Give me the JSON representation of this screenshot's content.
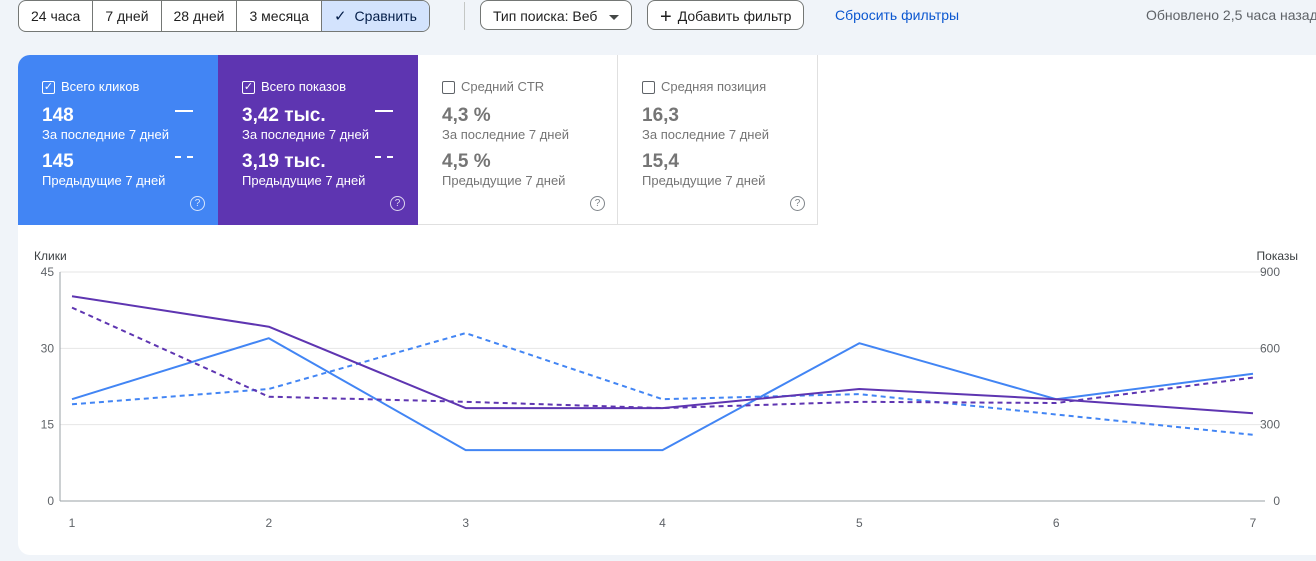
{
  "toolbar": {
    "date_ranges": [
      "24 часа",
      "7 дней",
      "28 дней",
      "3 месяца",
      "Сравнить"
    ],
    "active_range": "Сравнить",
    "search_type_label": "Тип поиска: Веб",
    "add_filter_label": "Добавить фильтр",
    "reset_filters_label": "Сбросить фильтры",
    "updated_text": "Обновлено 2,5 часа назад"
  },
  "metrics": [
    {
      "name": "Всего кликов",
      "checked": true,
      "current": "148",
      "current_label": "За последние 7 дней",
      "previous": "145",
      "previous_label": "Предыдущие 7 дней",
      "color": "#4285f4"
    },
    {
      "name": "Всего показов",
      "checked": true,
      "current": "3,42 тыс.",
      "current_label": "За последние 7 дней",
      "previous": "3,19 тыс.",
      "previous_label": "Предыдущие 7 дней",
      "color": "#5e35b1"
    },
    {
      "name": "Средний CTR",
      "checked": false,
      "current": "4,3 %",
      "current_label": "За последние 7 дней",
      "previous": "4,5 %",
      "previous_label": "Предыдущие 7 дней"
    },
    {
      "name": "Средняя позиция",
      "checked": false,
      "current": "16,3",
      "current_label": "За последние 7 дней",
      "previous": "15,4",
      "previous_label": "Предыдущие 7 дней"
    }
  ],
  "chart_data": {
    "type": "line",
    "x": [
      1,
      2,
      3,
      4,
      5,
      6,
      7
    ],
    "ylabel_left": "Клики",
    "ylabel_right": "Показы",
    "ylim_left": [
      0,
      45
    ],
    "ylim_right": [
      0,
      900
    ],
    "yticks_left": [
      0,
      15,
      30,
      45
    ],
    "yticks_right": [
      0,
      300,
      600,
      900
    ],
    "grid": true,
    "series": [
      {
        "axis": "left",
        "style": "solid",
        "color": "#4285f4",
        "values": [
          20,
          32,
          10,
          10,
          31,
          20,
          25
        ]
      },
      {
        "axis": "left",
        "style": "dashed",
        "color": "#4285f4",
        "values": [
          19,
          22,
          33,
          20,
          21,
          17,
          13
        ]
      },
      {
        "axis": "right",
        "style": "solid",
        "color": "#5e35b1",
        "values": [
          805,
          685,
          365,
          365,
          440,
          400,
          345
        ]
      },
      {
        "axis": "right",
        "style": "dashed",
        "color": "#5e35b1",
        "values": [
          760,
          410,
          390,
          365,
          390,
          385,
          485
        ]
      }
    ]
  }
}
